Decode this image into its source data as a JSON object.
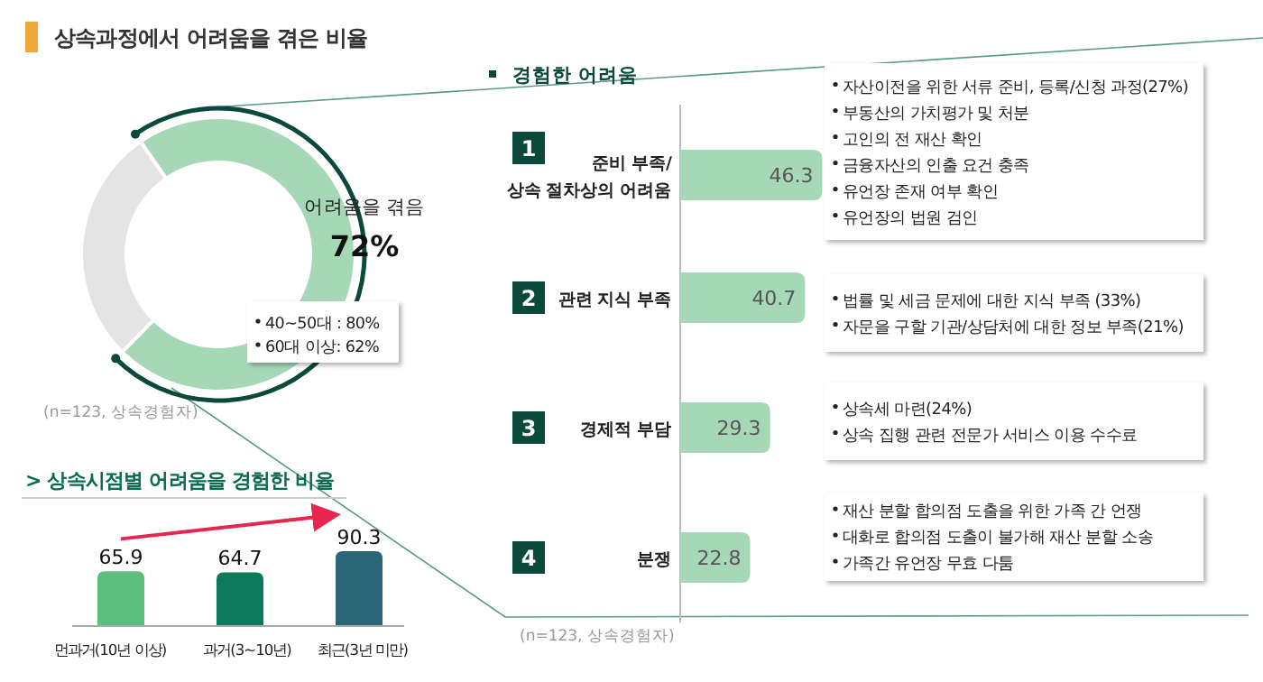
{
  "chart_data": [
    {
      "type": "donut",
      "title": "상속과정에서 어려움을 겪은 비율",
      "categories": [
        "어려움을 겪음",
        null
      ],
      "values": [
        72,
        28
      ],
      "colors": [
        "#a6d8b8",
        "#e4e4e4"
      ],
      "value_labels": [
        "72%",
        null
      ],
      "annotations": [
        "40~50대 : 80%",
        "60대 이상: 62%",
        "(n=123, 상속경험자)"
      ]
    },
    {
      "type": "bar",
      "title": "> 상속시점별  어려움을 경험한 비율",
      "categories": [
        "먼과거(10년 이상)",
        "과거(3~10년)",
        "최근(3년 미만)"
      ],
      "values": [
        65.9,
        64.7,
        90.3
      ],
      "colors": [
        "#5cbf80",
        "#0b7a5a",
        "#2a6678"
      ],
      "data_labels": true
    },
    {
      "type": "bar",
      "orientation": "horizontal",
      "title": "경험한 어려움",
      "categories": [
        "준비 부족/ 상속 절차상의 어려움",
        "관련 지식 부족",
        "경제적 부담",
        "분쟁"
      ],
      "values": [
        46.3,
        40.7,
        29.3,
        22.8
      ],
      "colors": [
        "#a6d8b8",
        "#a6d8b8",
        "#a6d8b8",
        "#a6d8b8"
      ],
      "data_labels": true,
      "annotations": [
        "1",
        "자산이전을 위한 서류 준비, 등록/신청 과정(27%)\n부동산의 가치평가 및 처분\n고인의 전 재산 확인\n금융자산의 인출 요건 충족\n유언장 존재 여부 확인\n유언장의 법원 검인",
        "2",
        "법률 및 세금 문제에 대한 지식 부족 (33%)\n자문을 구할 기관/상담처에 대한 정보 부족(21%)",
        "3",
        "상속세 마련(24%)\n상속 집행 관련 전문가 서비스 이용 수수료",
        "4",
        "재산 분할 합의점 도출을 위한 가족 간 언쟁\n대화로 합의점 도출이 불가해 재산 분할 소송\n가족간 유언장 무효 다툼",
        "(n=123, 상속경험자)"
      ]
    }
  ]
}
